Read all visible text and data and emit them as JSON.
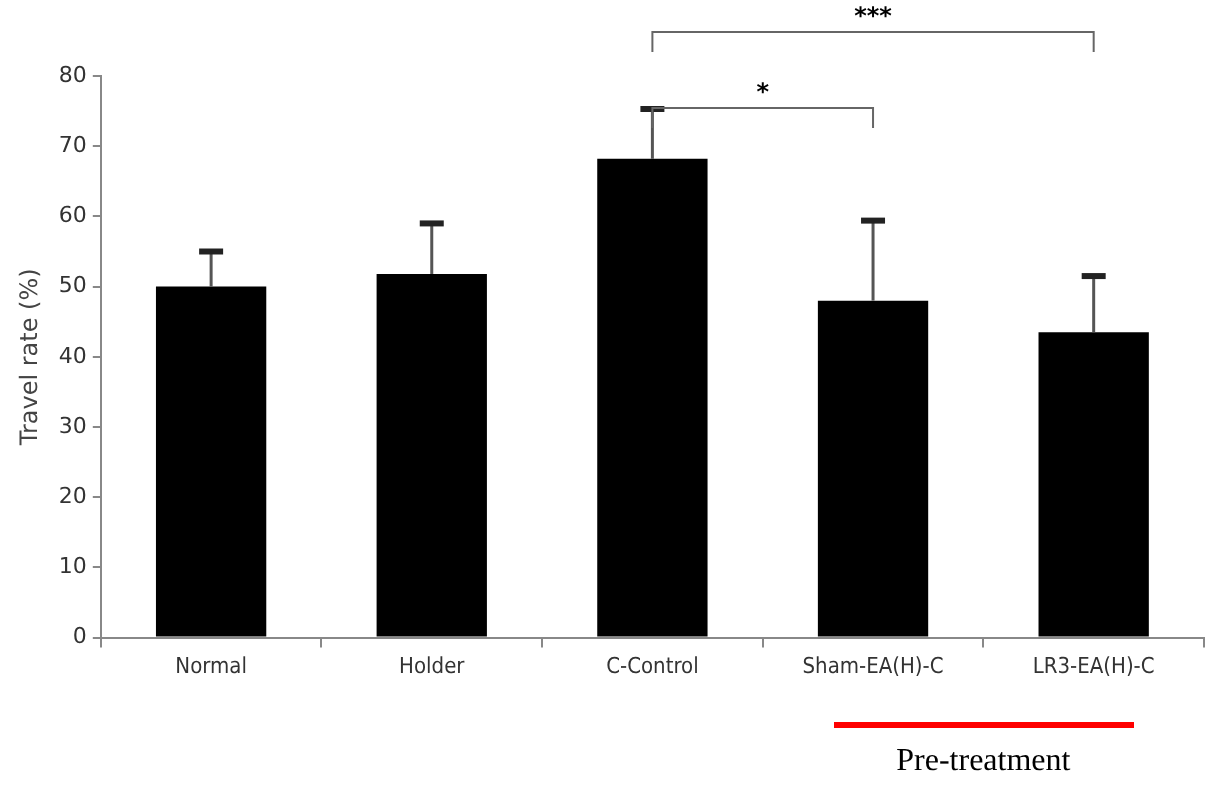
{
  "chart_data": {
    "type": "bar",
    "ylabel": "Travel rate (%)",
    "categories": [
      "Normal",
      "Holder",
      "C-Control",
      "Sham-EA(H)-C",
      "LR3-EA(H)-C"
    ],
    "values": [
      50,
      51.8,
      68.2,
      48,
      43.5
    ],
    "errors": [
      [
        50,
        55
      ],
      [
        51.8,
        59
      ],
      [
        68.2,
        75.3
      ],
      [
        48,
        59.4
      ],
      [
        43.5,
        51.5
      ]
    ],
    "color": "#000000",
    "ylim": [
      0,
      80
    ],
    "yticks": [
      0,
      10,
      20,
      30,
      40,
      50,
      60,
      70,
      80
    ],
    "grid": false,
    "legend": false,
    "annotations": [
      "*",
      "***",
      "Pre-treatment"
    ]
  }
}
